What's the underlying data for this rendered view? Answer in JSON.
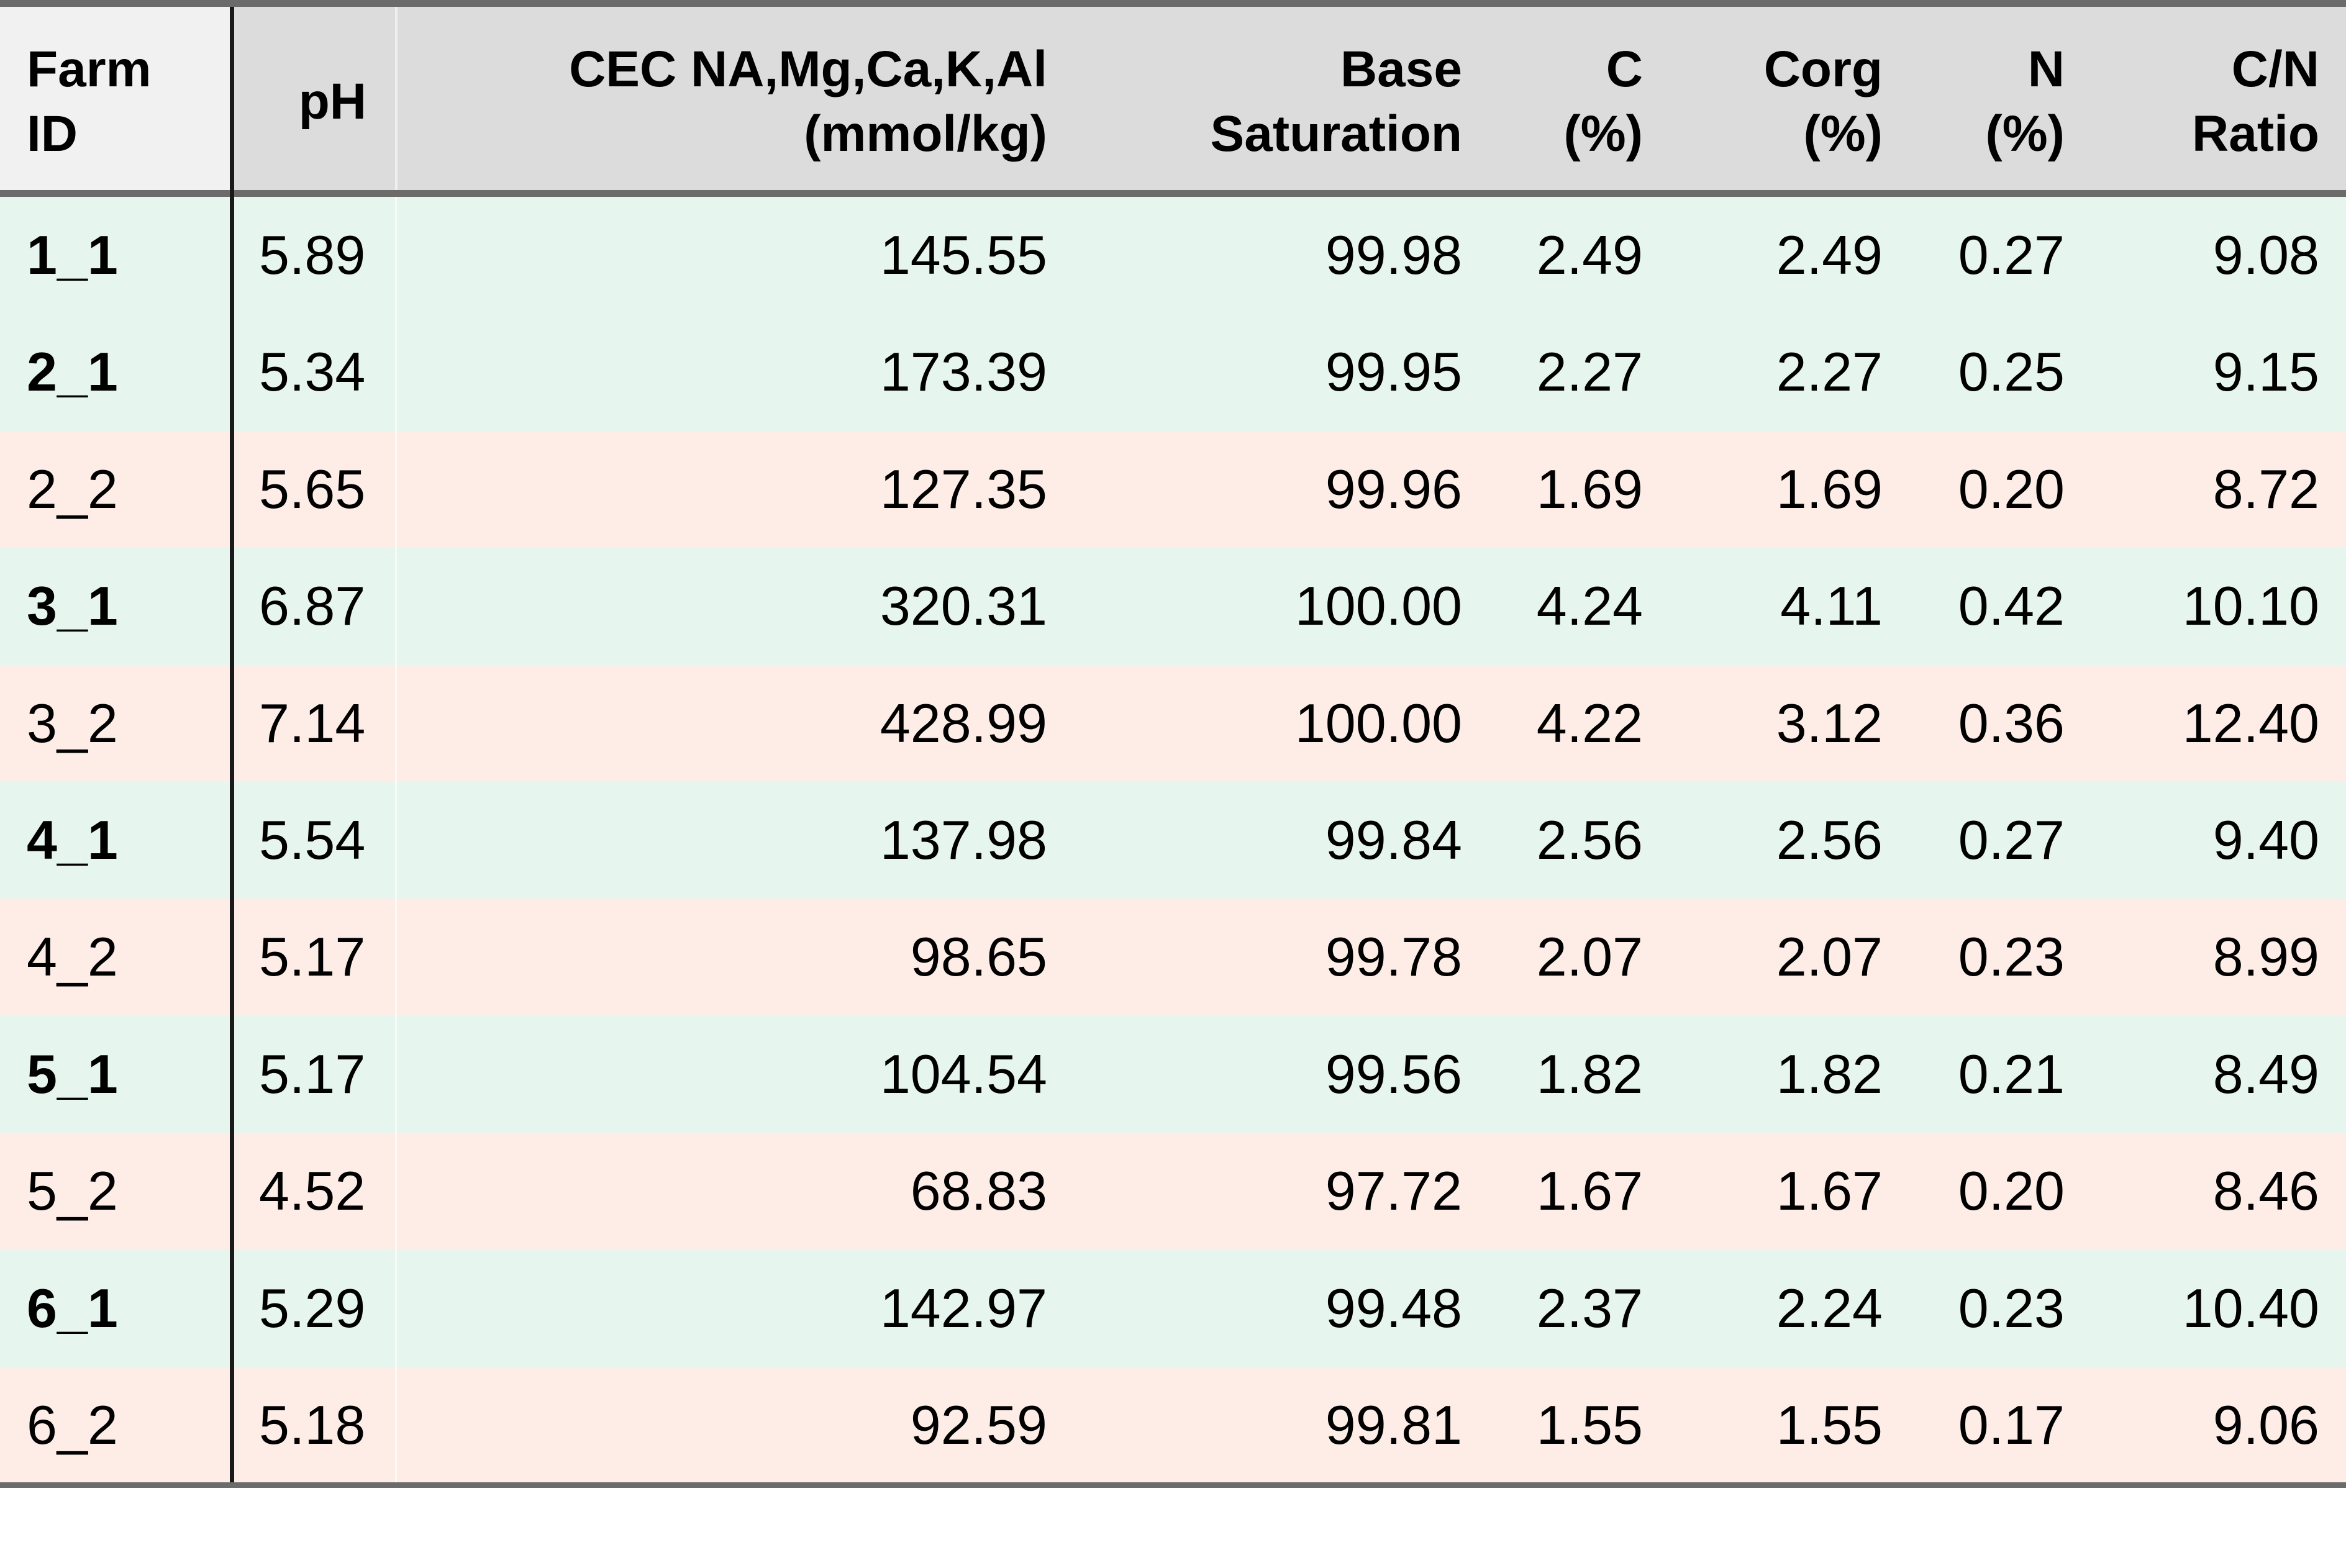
{
  "table": {
    "columns": [
      "Farm\nID",
      "pH",
      "CEC NA,Mg,Ca,K,Al\n(mmol/kg)",
      "Base\nSaturation",
      "C\n(%)",
      "Corg\n(%)",
      "N\n(%)",
      "C/N\nRatio"
    ],
    "rows": [
      {
        "fill": "#e7f5ef",
        "emphasis": true,
        "cells": [
          "1_1",
          "5.89",
          "145.55",
          "99.98",
          "2.49",
          "2.49",
          "0.27",
          "9.08"
        ]
      },
      {
        "fill": "#e7f5ef",
        "emphasis": true,
        "cells": [
          "2_1",
          "5.34",
          "173.39",
          "99.95",
          "2.27",
          "2.27",
          "0.25",
          "9.15"
        ]
      },
      {
        "fill": "#fdede6",
        "emphasis": false,
        "cells": [
          "2_2",
          "5.65",
          "127.35",
          "99.96",
          "1.69",
          "1.69",
          "0.20",
          "8.72"
        ]
      },
      {
        "fill": "#e7f5ef",
        "emphasis": true,
        "cells": [
          "3_1",
          "6.87",
          "320.31",
          "100.00",
          "4.24",
          "4.11",
          "0.42",
          "10.10"
        ]
      },
      {
        "fill": "#fdede6",
        "emphasis": false,
        "cells": [
          "3_2",
          "7.14",
          "428.99",
          "100.00",
          "4.22",
          "3.12",
          "0.36",
          "12.40"
        ]
      },
      {
        "fill": "#e7f5ef",
        "emphasis": true,
        "cells": [
          "4_1",
          "5.54",
          "137.98",
          "99.84",
          "2.56",
          "2.56",
          "0.27",
          "9.40"
        ]
      },
      {
        "fill": "#fdede6",
        "emphasis": false,
        "cells": [
          "4_2",
          "5.17",
          "98.65",
          "99.78",
          "2.07",
          "2.07",
          "0.23",
          "8.99"
        ]
      },
      {
        "fill": "#e7f5ef",
        "emphasis": true,
        "cells": [
          "5_1",
          "5.17",
          "104.54",
          "99.56",
          "1.82",
          "1.82",
          "0.21",
          "8.49"
        ]
      },
      {
        "fill": "#fdede6",
        "emphasis": false,
        "cells": [
          "5_2",
          "4.52",
          "68.83",
          "97.72",
          "1.67",
          "1.67",
          "0.20",
          "8.46"
        ]
      },
      {
        "fill": "#e7f5ef",
        "emphasis": true,
        "cells": [
          "6_1",
          "5.29",
          "142.97",
          "99.48",
          "2.37",
          "2.24",
          "0.23",
          "10.40"
        ]
      },
      {
        "fill": "#fdede6",
        "emphasis": false,
        "cells": [
          "6_2",
          "5.18",
          "92.59",
          "99.81",
          "1.55",
          "1.55",
          "0.17",
          "9.06"
        ]
      }
    ]
  }
}
